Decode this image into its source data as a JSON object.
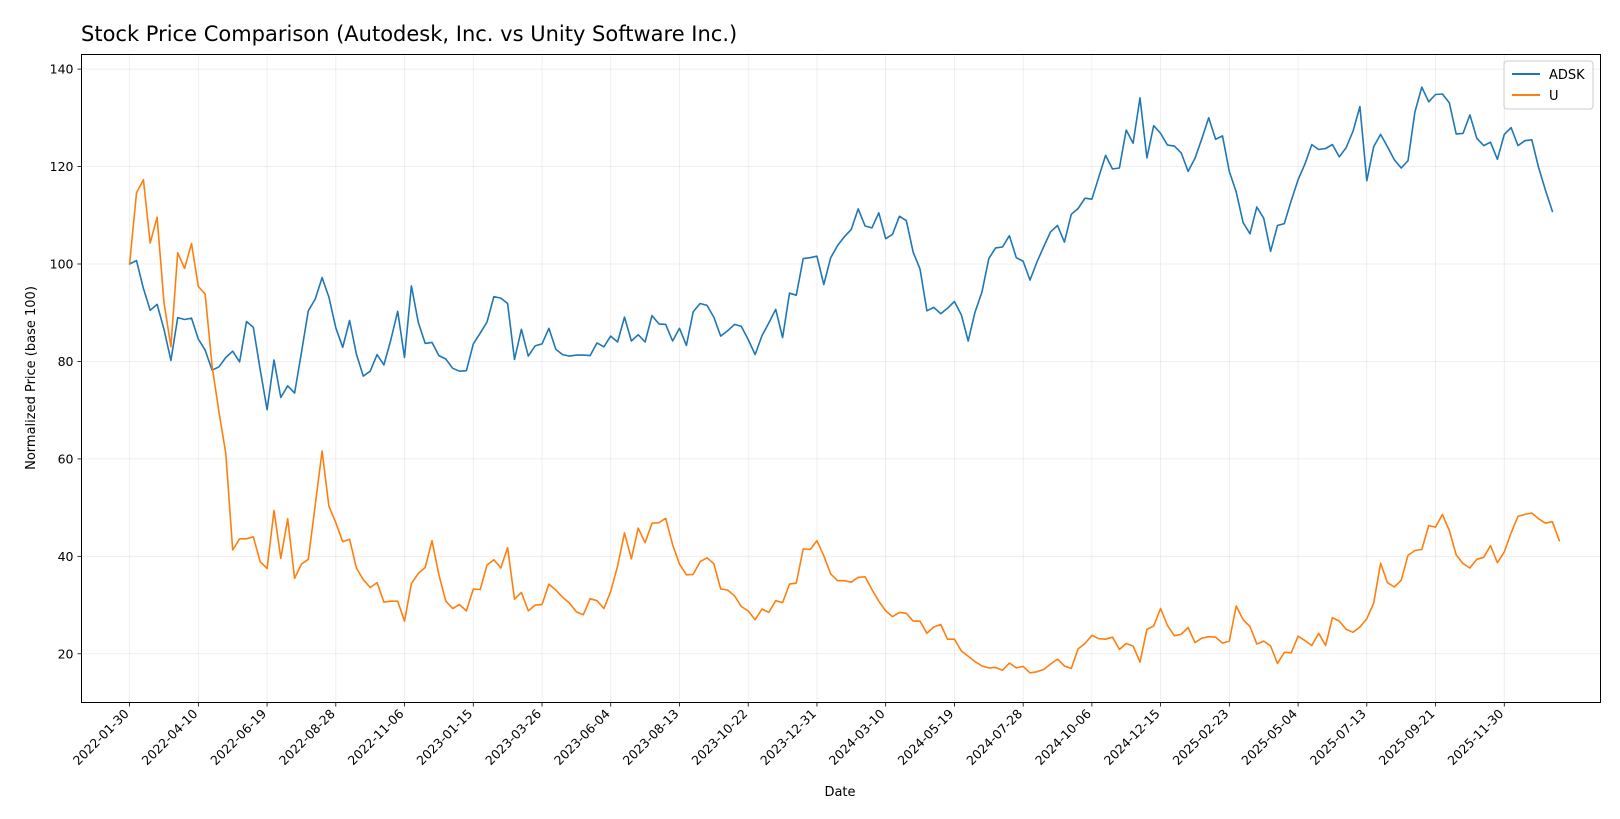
{
  "chart_data": {
    "type": "line",
    "title": "Stock Price Comparison (Autodesk, Inc. vs Unity Software Inc.)",
    "xlabel": "Date",
    "ylabel": "Normalized Price (base 100)",
    "ylim": [
      10,
      143
    ],
    "yticks": [
      20,
      40,
      60,
      80,
      100,
      120,
      140
    ],
    "x_tick_labels": [
      "2022-01-30",
      "2022-04-10",
      "2022-06-19",
      "2022-08-28",
      "2022-11-06",
      "2023-01-15",
      "2023-03-26",
      "2023-06-04",
      "2023-08-13",
      "2023-10-22",
      "2023-12-31",
      "2024-03-10",
      "2024-05-19",
      "2024-07-28",
      "2024-10-06",
      "2024-12-15",
      "2025-02-23",
      "2025-05-04",
      "2025-07-13",
      "2025-09-21",
      "2025-11-30"
    ],
    "x_start": "2022-01-30",
    "x_step_weeks": 1,
    "x_range_weeks": [
      -7,
      214
    ],
    "legend_position": "top-right",
    "grid": true,
    "series": [
      {
        "name": "ADSK",
        "color": "#1f77b4",
        "values": [
          100.0,
          100.7,
          95.0,
          90.5,
          91.7,
          86.6,
          80.2,
          89.0,
          88.6,
          88.9,
          84.6,
          82.3,
          78.2,
          78.9,
          80.8,
          82.1,
          79.9,
          88.2,
          87.0,
          78.3,
          70.1,
          80.3,
          72.6,
          75.0,
          73.5,
          81.8,
          90.4,
          92.8,
          97.2,
          93.2,
          86.9,
          82.9,
          88.4,
          81.5,
          77.0,
          78.0,
          81.4,
          79.3,
          84.4,
          90.3,
          80.8,
          95.5,
          88.0,
          83.7,
          83.9,
          81.2,
          80.5,
          78.6,
          78.0,
          78.1,
          83.6,
          85.8,
          88.1,
          93.3,
          93.0,
          91.9,
          80.4,
          86.6,
          81.1,
          83.2,
          83.6,
          86.8,
          82.5,
          81.4,
          81.1,
          81.3,
          81.3,
          81.2,
          83.8,
          83.0,
          85.2,
          84.0,
          89.1,
          84.2,
          85.5,
          84.0,
          89.4,
          87.7,
          87.6,
          84.2,
          86.8,
          83.3,
          90.2,
          91.9,
          91.5,
          89.1,
          85.2,
          86.3,
          87.6,
          87.2,
          84.5,
          81.4,
          85.3,
          87.9,
          90.7,
          84.9,
          94.0,
          93.6,
          101.1,
          101.3,
          101.6,
          95.8,
          101.3,
          103.8,
          105.6,
          107.1,
          111.3,
          107.8,
          107.4,
          110.5,
          105.2,
          106.1,
          109.8,
          108.9,
          102.4,
          99.0,
          90.4,
          91.1,
          89.8,
          90.9,
          92.3,
          89.6,
          84.2,
          90.1,
          94.2,
          101.1,
          103.3,
          103.5,
          105.8,
          101.3,
          100.6,
          96.7,
          100.4,
          103.6,
          106.6,
          107.9,
          104.5,
          110.2,
          111.4,
          113.5,
          113.3,
          117.8,
          122.3,
          119.5,
          119.7,
          127.5,
          124.8,
          134.1,
          121.8,
          128.4,
          126.8,
          124.4,
          124.2,
          122.8,
          119.0,
          121.7,
          125.7,
          130.0,
          125.6,
          126.3,
          119.0,
          114.8,
          108.5,
          106.2,
          111.7,
          109.4,
          102.6,
          107.9,
          108.3,
          113.0,
          117.3,
          120.5,
          124.5,
          123.5,
          123.7,
          124.5,
          122.0,
          123.9,
          127.3,
          132.3,
          117.1,
          124.1,
          126.6,
          124.1,
          121.4,
          119.7,
          121.2,
          131.2,
          136.3,
          133.3,
          134.8,
          134.9,
          133.1,
          126.7,
          126.8,
          130.6,
          125.8,
          124.3,
          125.0,
          121.5,
          126.6,
          128.0,
          124.3,
          125.3,
          125.5,
          119.8,
          115.1,
          110.8
        ]
      },
      {
        "name": "U",
        "color": "#ff7f0e",
        "values": [
          100.0,
          114.6,
          117.3,
          104.3,
          109.6,
          92.1,
          83.0,
          102.3,
          99.1,
          104.2,
          95.4,
          93.8,
          79.0,
          69.6,
          61.1,
          41.3,
          43.6,
          43.6,
          44.0,
          38.9,
          37.5,
          49.4,
          39.6,
          47.7,
          35.5,
          38.4,
          39.4,
          50.5,
          61.6,
          50.3,
          46.9,
          43.0,
          43.5,
          37.6,
          35.2,
          33.6,
          34.6,
          30.6,
          30.8,
          30.8,
          26.7,
          34.4,
          36.5,
          37.7,
          43.2,
          36.2,
          30.8,
          29.3,
          30.1,
          28.8,
          33.3,
          33.2,
          38.2,
          39.3,
          37.6,
          41.8,
          31.2,
          32.6,
          28.8,
          30.0,
          30.1,
          34.3,
          33.1,
          31.6,
          30.4,
          28.6,
          28.0,
          31.3,
          30.9,
          29.3,
          32.8,
          38.0,
          44.8,
          39.5,
          45.8,
          42.8,
          46.8,
          46.9,
          47.8,
          42.4,
          38.4,
          36.2,
          36.3,
          38.9,
          39.7,
          38.5,
          33.3,
          33.1,
          31.9,
          29.7,
          28.8,
          27.0,
          29.2,
          28.5,
          30.9,
          30.5,
          34.3,
          34.5,
          41.5,
          41.4,
          43.2,
          40.1,
          36.4,
          35.0,
          35.0,
          34.7,
          35.7,
          35.8,
          33.2,
          30.8,
          28.8,
          27.6,
          28.5,
          28.3,
          26.7,
          26.7,
          24.2,
          25.5,
          26.0,
          23.0,
          23.0,
          20.6,
          19.5,
          18.4,
          17.5,
          17.1,
          17.2,
          16.6,
          18.1,
          17.1,
          17.4,
          16.1,
          16.3,
          16.8,
          17.9,
          18.9,
          17.5,
          17.0,
          21.0,
          22.1,
          23.8,
          23.1,
          23.0,
          23.4,
          20.9,
          22.1,
          21.6,
          18.3,
          25.0,
          25.7,
          29.3,
          25.8,
          23.7,
          24.0,
          25.4,
          22.3,
          23.2,
          23.5,
          23.4,
          22.2,
          22.6,
          29.8,
          27.0,
          25.6,
          22.0,
          22.6,
          21.6,
          18.0,
          20.3,
          20.2,
          23.6,
          22.7,
          21.7,
          24.2,
          21.7,
          27.4,
          26.7,
          25.0,
          24.4,
          25.5,
          27.2,
          30.4,
          38.6,
          34.6,
          33.7,
          35.1,
          40.2,
          41.2,
          41.4,
          46.3,
          46.0,
          48.6,
          45.3,
          40.3,
          38.5,
          37.6,
          39.4,
          39.8,
          42.2,
          38.7,
          40.9,
          44.8,
          48.2,
          48.6,
          48.9,
          47.7,
          46.8,
          47.1,
          43.2
        ]
      }
    ]
  }
}
